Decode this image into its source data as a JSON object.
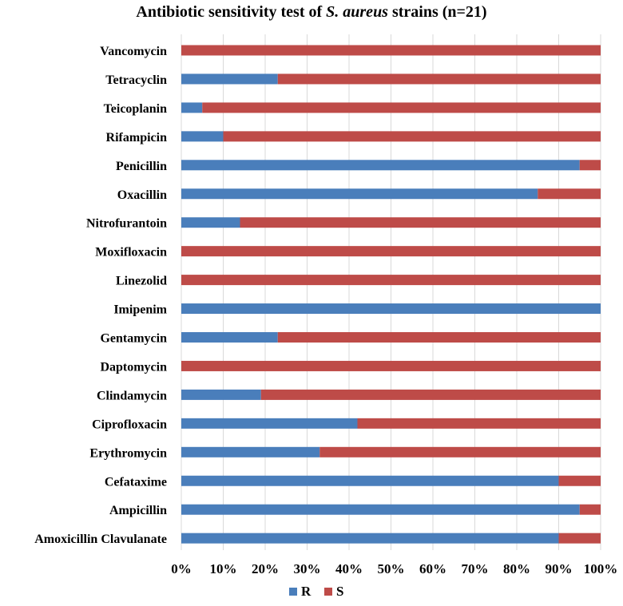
{
  "chart_data": {
    "type": "bar",
    "stacked": true,
    "percent_stacked": true,
    "orientation": "horizontal",
    "title": {
      "prefix": "Antibiotic  sensitivity test of ",
      "italic": "S. aureus",
      "suffix": " strains (n=21)"
    },
    "categories": [
      "Vancomycin",
      "Tetracyclin",
      "Teicoplanin",
      "Rifampicin",
      "Penicillin",
      "Oxacillin",
      "Nitrofurantoin",
      "Moxifloxacin",
      "Linezolid",
      "Imipenim",
      "Gentamycin",
      "Daptomycin",
      "Clindamycin",
      "Ciprofloxacin",
      "Erythromycin",
      "Cefataxime",
      "Ampicillin",
      "Amoxicillin Clavulanate"
    ],
    "series": [
      {
        "name": "R",
        "color": "#4a7ebb",
        "values": [
          0,
          23,
          5,
          10,
          95,
          85,
          14,
          0,
          0,
          100,
          23,
          0,
          19,
          42,
          33,
          90,
          95,
          90
        ]
      },
      {
        "name": "S",
        "color": "#be4b48",
        "values": [
          100,
          77,
          95,
          90,
          5,
          15,
          86,
          100,
          100,
          0,
          77,
          100,
          81,
          58,
          67,
          10,
          5,
          10
        ]
      }
    ],
    "xlim": [
      0,
      100
    ],
    "xticks": [
      "0%",
      "10%",
      "20%",
      "30%",
      "40%",
      "50%",
      "60%",
      "70%",
      "80%",
      "90%",
      "100%"
    ],
    "xticks_values": [
      0,
      10,
      20,
      30,
      40,
      50,
      60,
      70,
      80,
      90,
      100
    ],
    "grid": true,
    "legend_position": "bottom"
  }
}
